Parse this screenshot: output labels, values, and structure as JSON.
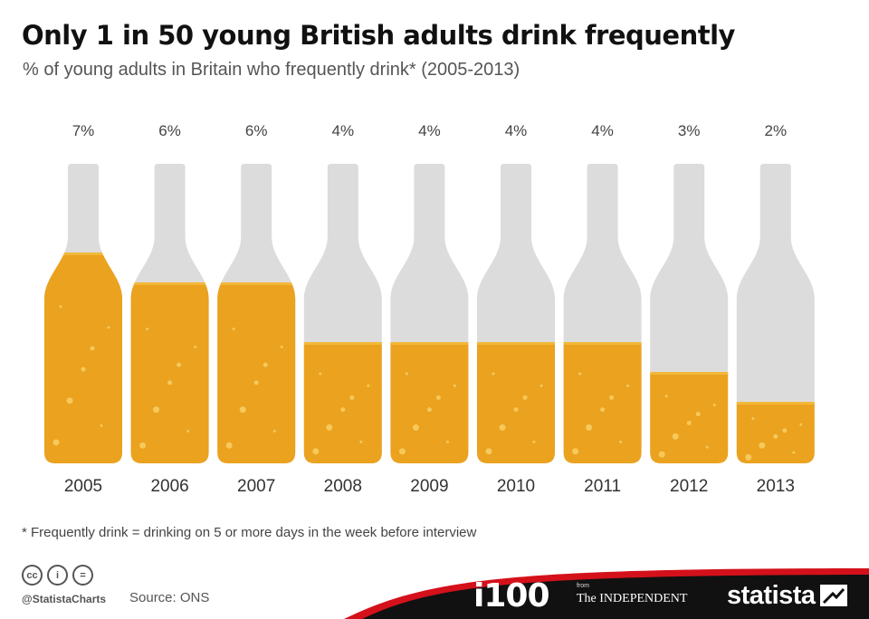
{
  "header": {
    "title": "Only 1 in 50 young British adults drink frequently",
    "subtitle": "% of young adults in Britain who frequently drink* (2005-2013)"
  },
  "chart_data": {
    "type": "bar",
    "title": "Only 1 in 50 young British adults drink frequently",
    "subtitle": "% of young adults in Britain who frequently drink* (2005-2013)",
    "categories": [
      "2005",
      "2006",
      "2007",
      "2008",
      "2009",
      "2010",
      "2011",
      "2012",
      "2013"
    ],
    "values": [
      7,
      6,
      6,
      4,
      4,
      4,
      4,
      3,
      2
    ],
    "value_labels": [
      "7%",
      "6%",
      "6%",
      "4%",
      "4%",
      "4%",
      "4%",
      "3%",
      "2%"
    ],
    "unit": "%",
    "ylim": [
      0,
      10
    ],
    "grid": false,
    "colors": {
      "fill": "#eba21f",
      "empty": "#dcdcdc",
      "bubble": "#f6c95a",
      "foam": "#f2b83a"
    }
  },
  "footnote": "* Frequently drink = drinking on 5 or more days in the week before interview",
  "footer": {
    "license_icons": [
      "cc",
      "i",
      "="
    ],
    "handle": "@StatistaCharts",
    "source": "Source: ONS",
    "partner_logo": "i100",
    "from_label": "from",
    "partner_publication": "The INDEPENDENT",
    "brand": "statista",
    "band_color": "#111111",
    "accent_color": "#d4111b"
  }
}
